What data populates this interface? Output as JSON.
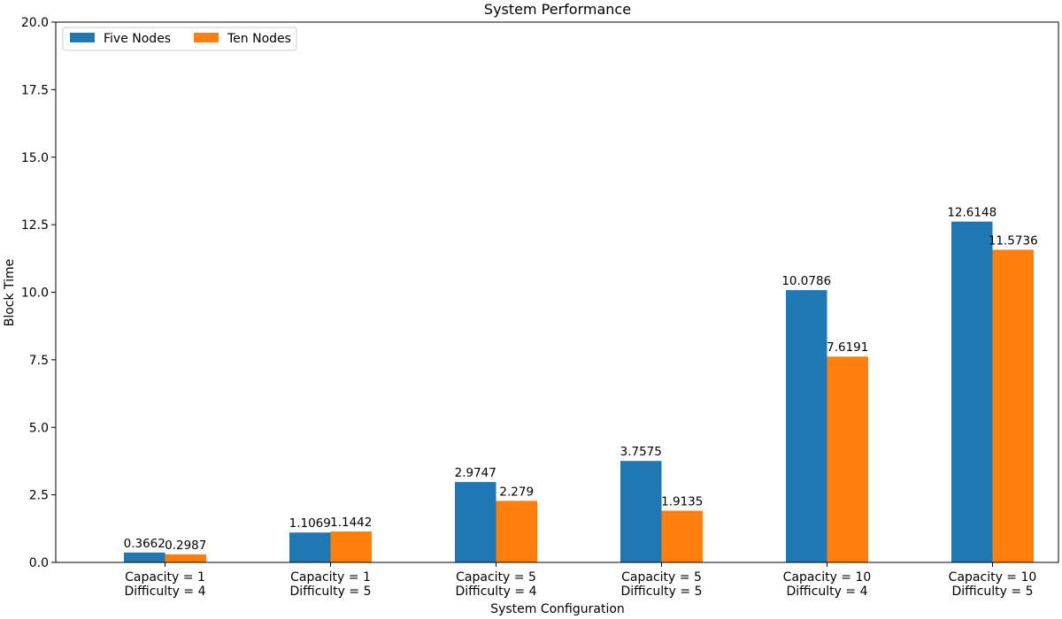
{
  "chart_data": {
    "type": "bar",
    "title": "System Performance",
    "xlabel": "System Configuration",
    "ylabel": "Block Time",
    "ylim": [
      0,
      20
    ],
    "yticks": [
      "0.0",
      "2.5",
      "5.0",
      "7.5",
      "10.0",
      "12.5",
      "15.0",
      "17.5",
      "20.0"
    ],
    "categories": [
      [
        "Capacity = 1",
        "Difficulty = 4"
      ],
      [
        "Capacity = 1",
        "Difficulty = 5"
      ],
      [
        "Capacity = 5",
        "Difficulty = 4"
      ],
      [
        "Capacity = 5",
        "Difficulty = 5"
      ],
      [
        "Capacity = 10",
        "Difficulty = 4"
      ],
      [
        "Capacity = 10",
        "Difficulty = 5"
      ]
    ],
    "series": [
      {
        "name": "Five Nodes",
        "color": "#1f77b4",
        "values": [
          0.3662,
          1.1069,
          2.9747,
          3.7575,
          10.0786,
          12.6148
        ],
        "labels": [
          "0.3662",
          "1.1069",
          "2.9747",
          "3.7575",
          "10.0786",
          "12.6148"
        ]
      },
      {
        "name": "Ten Nodes",
        "color": "#ff7f0e",
        "values": [
          0.2987,
          1.1442,
          2.279,
          1.9135,
          7.6191,
          11.5736
        ],
        "labels": [
          "0.2987",
          "1.1442",
          "2.279",
          "1.9135",
          "7.6191",
          "11.5736"
        ]
      }
    ],
    "legend": "top-left",
    "grid": false
  }
}
